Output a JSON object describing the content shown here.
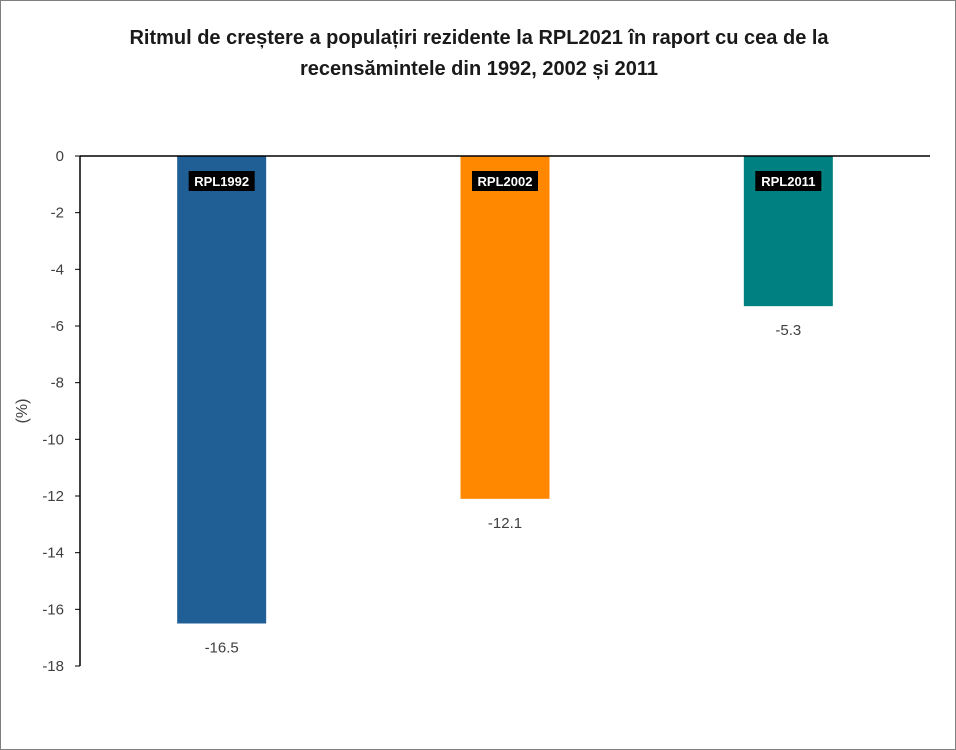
{
  "chart_data": {
    "type": "bar",
    "title_line1": "Ritmul de creștere a populațiri  rezidente la RPL2021 în raport cu cea de la",
    "title_line2": "recensămintele din  1992, 2002 și 2011",
    "ylabel": "(%)",
    "xlabel": "",
    "ylim": [
      -18,
      0
    ],
    "yticks": [
      0,
      -2,
      -4,
      -6,
      -8,
      -10,
      -12,
      -14,
      -16,
      -18
    ],
    "grid": false,
    "legend": "none",
    "categories": [
      "RPL1992",
      "RPL2002",
      "RPL2011"
    ],
    "values": [
      -16.5,
      -12.1,
      -5.3
    ],
    "value_labels": [
      "-16.5",
      "-12.1",
      "-5.3"
    ],
    "colors": [
      "#1f5f95",
      "#ff8800",
      "#008080"
    ]
  }
}
